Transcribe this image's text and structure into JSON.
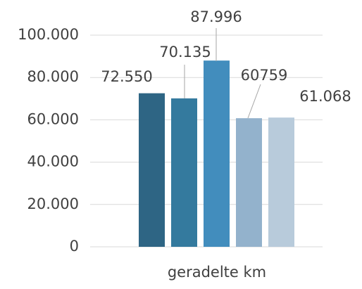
{
  "chart_data": {
    "type": "bar",
    "categories": [
      "geradelte km"
    ],
    "series": [
      {
        "color": "#2e6584",
        "values": [
          72550
        ],
        "value_labels": [
          "72.550"
        ]
      },
      {
        "color": "#347a9e",
        "values": [
          70135
        ],
        "value_labels": [
          "70.135"
        ]
      },
      {
        "color": "#428dbd",
        "values": [
          87996
        ],
        "value_labels": [
          "87.996"
        ]
      },
      {
        "color": "#93b2cc",
        "values": [
          60759
        ],
        "value_labels": [
          "60759"
        ]
      },
      {
        "color": "#b8cbdb",
        "values": [
          61068
        ],
        "value_labels": [
          "61.068"
        ]
      }
    ],
    "ylim": [
      0,
      100000
    ],
    "yticks": [
      0,
      {
        "value": 20000,
        "label": "20.000"
      },
      {
        "value": 40000,
        "label": "40.000"
      },
      {
        "value": 60000,
        "label": "60.000"
      },
      {
        "value": 80000,
        "label": "80.000"
      },
      {
        "value": 100000,
        "label": "100.000"
      }
    ],
    "grid": true
  }
}
